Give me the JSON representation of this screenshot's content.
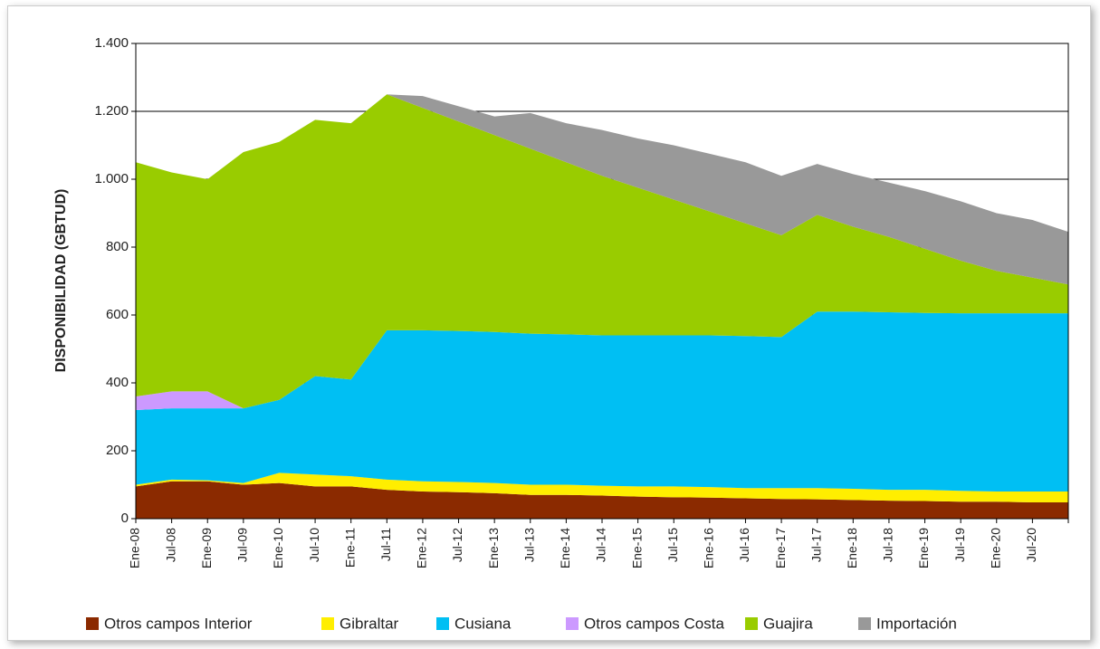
{
  "chart_data": {
    "type": "stacked_area",
    "ylabel": "DISPONIBILIDAD (GBTUD)",
    "categories": [
      "Ene-08",
      "Jul-08",
      "Ene-09",
      "Jul-09",
      "Ene-10",
      "Jul-10",
      "Ene-11",
      "Jul-11",
      "Ene-12",
      "Jul-12",
      "Ene-13",
      "Jul-13",
      "Ene-14",
      "Jul-14",
      "Ene-15",
      "Jul-15",
      "Ene-16",
      "Jul-16",
      "Ene-17",
      "Jul-17",
      "Ene-18",
      "Jul-18",
      "Ene-19",
      "Jul-19",
      "Ene-20",
      "Jul-20",
      null
    ],
    "ylim": [
      0,
      1400
    ],
    "yticks": [
      0,
      200,
      400,
      600,
      800,
      {
        "value": 1000,
        "label": "1.000"
      },
      {
        "value": 1200,
        "label": "1.200"
      },
      {
        "value": 1400,
        "label": "1.400"
      }
    ],
    "series": [
      {
        "name": "Otros campos Interior",
        "color": "#8b2a00",
        "values": [
          95,
          110,
          110,
          100,
          105,
          95,
          95,
          85,
          80,
          78,
          75,
          70,
          70,
          68,
          65,
          63,
          62,
          60,
          58,
          57,
          55,
          53,
          52,
          50,
          50,
          48,
          48
        ]
      },
      {
        "name": "Gibraltar",
        "color": "#ffee00",
        "values": [
          5,
          5,
          3,
          5,
          30,
          35,
          30,
          30,
          30,
          30,
          30,
          30,
          30,
          29,
          30,
          32,
          31,
          30,
          32,
          33,
          33,
          32,
          33,
          32,
          30,
          32,
          32
        ]
      },
      {
        "name": "Cusiana",
        "color": "#00bff3",
        "values": [
          220,
          210,
          212,
          220,
          215,
          290,
          285,
          440,
          445,
          445,
          445,
          445,
          443,
          443,
          445,
          445,
          447,
          448,
          445,
          520,
          522,
          523,
          521,
          523,
          525,
          525,
          525
        ]
      },
      {
        "name": "Otros campos Costa",
        "color": "#cc99ff",
        "values": [
          40,
          50,
          50,
          0,
          0,
          0,
          0,
          0,
          0,
          0,
          0,
          0,
          0,
          0,
          0,
          0,
          0,
          0,
          0,
          0,
          0,
          0,
          0,
          0,
          0,
          0,
          0
        ]
      },
      {
        "name": "Guajira",
        "color": "#99cc00",
        "values": [
          690,
          645,
          625,
          755,
          760,
          755,
          755,
          695,
          655,
          617,
          580,
          545,
          507,
          470,
          435,
          400,
          365,
          332,
          300,
          285,
          250,
          222,
          189,
          155,
          125,
          105,
          85
        ]
      },
      {
        "name": "Importación",
        "color": "#999999",
        "values": [
          0,
          0,
          0,
          0,
          0,
          0,
          0,
          0,
          35,
          45,
          55,
          105,
          115,
          135,
          145,
          160,
          170,
          180,
          175,
          150,
          155,
          160,
          170,
          175,
          170,
          170,
          155
        ]
      }
    ],
    "grid": true
  }
}
